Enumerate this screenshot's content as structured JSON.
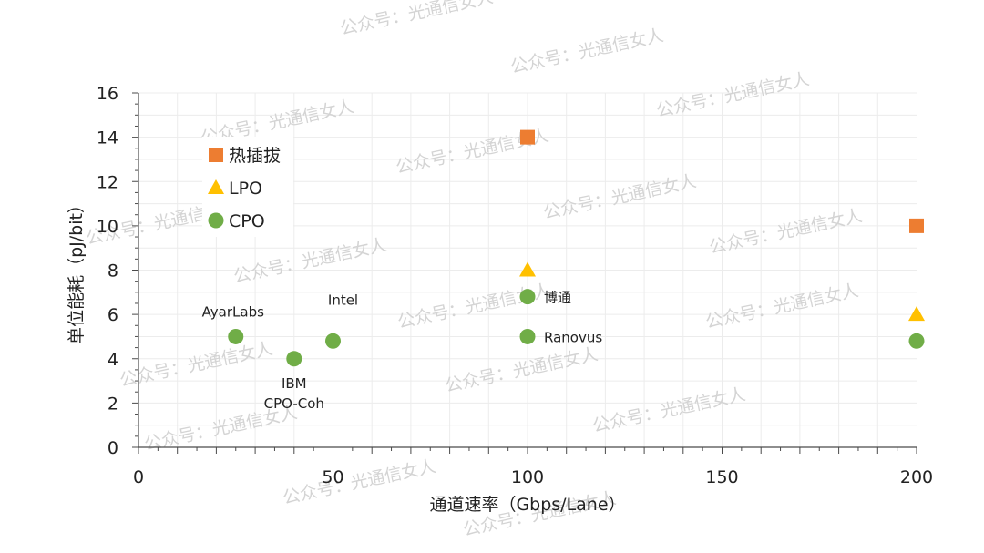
{
  "chart_data": {
    "type": "scatter",
    "title": "",
    "xlabel": "通道速率（Gbps/Lane）",
    "ylabel": "单位能耗（pJ/bit）",
    "xlim": [
      0,
      200
    ],
    "ylim": [
      0,
      16
    ],
    "xticks": [
      0,
      50,
      100,
      150,
      200
    ],
    "yticks": [
      0,
      2,
      4,
      6,
      8,
      10,
      12,
      14,
      16
    ],
    "grid": true,
    "legend_position": "top-left",
    "series": [
      {
        "name": "热插拔",
        "marker": "square",
        "color": "#ed7d31",
        "points": [
          {
            "x": 100,
            "y": 14,
            "label": ""
          },
          {
            "x": 200,
            "y": 10,
            "label": ""
          }
        ]
      },
      {
        "name": "LPO",
        "marker": "triangle",
        "color": "#ffc000",
        "points": [
          {
            "x": 100,
            "y": 8,
            "label": ""
          },
          {
            "x": 200,
            "y": 6,
            "label": ""
          }
        ]
      },
      {
        "name": "CPO",
        "marker": "circle",
        "color": "#70ad47",
        "points": [
          {
            "x": 25,
            "y": 5,
            "label": "AyarLabs"
          },
          {
            "x": 40,
            "y": 4,
            "label": "IBM\nCPO-Coh"
          },
          {
            "x": 50,
            "y": 4.8,
            "label": "Intel"
          },
          {
            "x": 100,
            "y": 6.8,
            "label": "博通"
          },
          {
            "x": 100,
            "y": 5,
            "label": "Ranovus"
          },
          {
            "x": 200,
            "y": 4.8,
            "label": ""
          }
        ]
      }
    ]
  },
  "watermark": "公众号：光通信女人"
}
